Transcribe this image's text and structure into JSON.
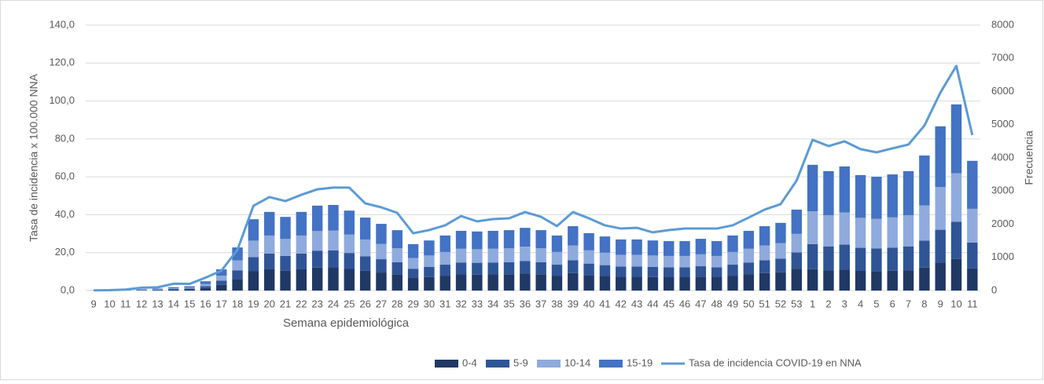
{
  "chart_data": {
    "type": "bar",
    "stacked": true,
    "xlabel": "Semana epidemiológica",
    "ylabel": "Tasa de incidencia x 100.000 NNA",
    "y2label": "Frecuencia",
    "categories": [
      "9",
      "10",
      "11",
      "12",
      "13",
      "14",
      "15",
      "16",
      "17",
      "18",
      "19",
      "20",
      "21",
      "22",
      "23",
      "24",
      "25",
      "26",
      "27",
      "28",
      "29",
      "30",
      "31",
      "32",
      "33",
      "34",
      "35",
      "36",
      "37",
      "38",
      "39",
      "40",
      "41",
      "42",
      "43",
      "44",
      "45",
      "46",
      "47",
      "48",
      "49",
      "50",
      "51",
      "52",
      "53",
      "1",
      "2",
      "3",
      "4",
      "5",
      "6",
      "7",
      "8",
      "9",
      "10",
      "11"
    ],
    "ylim": [
      0,
      140
    ],
    "yticks": [
      {
        "value": 0,
        "label": "0,0"
      },
      {
        "value": 20,
        "label": "20,0"
      },
      {
        "value": 40,
        "label": "40,0"
      },
      {
        "value": 60,
        "label": "60,0"
      },
      {
        "value": 80,
        "label": "80,0"
      },
      {
        "value": 100,
        "label": "100,0"
      },
      {
        "value": 120,
        "label": "120,0"
      },
      {
        "value": 140,
        "label": "140,0"
      }
    ],
    "y2lim": [
      0,
      8000
    ],
    "y2ticks": [
      0,
      1000,
      2000,
      3000,
      4000,
      5000,
      6000,
      7000,
      8000
    ],
    "grid": true,
    "legend": "bottom",
    "series": [
      {
        "name": "0-4",
        "color": "#203864",
        "axis": "y2",
        "values": [
          1,
          3,
          5,
          11,
          16,
          27,
          35,
          76,
          173,
          350,
          580,
          640,
          600,
          640,
          691,
          697,
          651,
          594,
          543,
          491,
          378,
          408,
          448,
          486,
          481,
          486,
          491,
          510,
          491,
          448,
          524,
          467,
          440,
          416,
          416,
          408,
          402,
          402,
          421,
          402,
          448,
          486,
          524,
          551,
          659,
          644,
          612,
          636,
          592,
          583,
          595,
          612,
          692,
          842,
          954,
          665
        ]
      },
      {
        "name": "5-9",
        "color": "#2f5597",
        "axis": "y2",
        "values": [
          1,
          2,
          4,
          8,
          12,
          20,
          26,
          56,
          128,
          260,
          430,
          474,
          444,
          474,
          512,
          516,
          482,
          440,
          402,
          364,
          280,
          302,
          332,
          360,
          356,
          360,
          364,
          378,
          364,
          332,
          388,
          346,
          326,
          308,
          308,
          302,
          298,
          298,
          312,
          298,
          332,
          360,
          388,
          408,
          488,
          758,
          720,
          748,
          696,
          686,
          700,
          720,
          814,
          990,
          1122,
          782
        ]
      },
      {
        "name": "10-14",
        "color": "#8faadc",
        "axis": "y2",
        "values": [
          1,
          2,
          5,
          9,
          14,
          23,
          30,
          64,
          147,
          300,
          495,
          545,
          511,
          545,
          589,
          593,
          554,
          506,
          462,
          419,
          322,
          347,
          382,
          414,
          409,
          414,
          419,
          435,
          419,
          382,
          446,
          398,
          375,
          354,
          354,
          347,
          343,
          343,
          359,
          343,
          382,
          414,
          446,
          469,
          561,
          985,
          936,
          972,
          905,
          892,
          910,
          936,
          1058,
          1287,
          1459,
          1017
        ]
      },
      {
        "name": "15-19",
        "color": "#4472c4",
        "axis": "y2",
        "values": [
          2,
          3,
          6,
          12,
          18,
          30,
          39,
          84,
          192,
          390,
          645,
          711,
          665,
          711,
          768,
          774,
          723,
          660,
          603,
          546,
          420,
          453,
          498,
          540,
          534,
          540,
          546,
          567,
          546,
          498,
          582,
          519,
          489,
          462,
          462,
          453,
          447,
          447,
          468,
          447,
          498,
          540,
          582,
          612,
          732,
          1403,
          1332,
          1384,
          1287,
          1269,
          1295,
          1332,
          1506,
          1831,
          2075,
          1446
        ]
      },
      {
        "name": "Tasa de incidencia COVID-19 en NNA",
        "type": "line",
        "color": "#5b9bd5",
        "axis": "y",
        "values": [
          0.1,
          0.2,
          0.5,
          1.5,
          1.7,
          3.6,
          3.5,
          6.8,
          10.5,
          21.5,
          44.7,
          49.3,
          47.2,
          50.5,
          53.4,
          54.3,
          54.3,
          46.0,
          43.9,
          41.0,
          30.2,
          31.9,
          34.4,
          39.3,
          36.5,
          37.7,
          38.1,
          41.4,
          38.9,
          34.0,
          41.4,
          38.1,
          34.4,
          32.7,
          33.1,
          30.7,
          31.9,
          32.7,
          32.7,
          32.7,
          34.4,
          38.5,
          42.7,
          45.6,
          58.0,
          79.5,
          76.2,
          78.7,
          74.6,
          72.9,
          75.0,
          77.0,
          87.0,
          104.4,
          118.5,
          82.0
        ]
      }
    ]
  }
}
